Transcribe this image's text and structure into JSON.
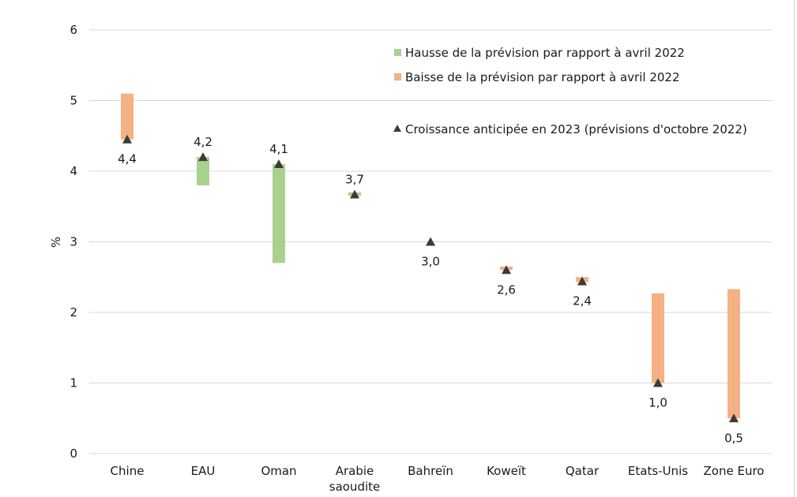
{
  "chart_data": {
    "type": "bar",
    "subtype": "floating-bar-with-markers",
    "ylabel": "%",
    "ylim": [
      0,
      6
    ],
    "yticks": [
      0,
      1,
      2,
      3,
      4,
      5,
      6
    ],
    "grid": true,
    "legend_position": "top-right",
    "categories": [
      [
        "Chine"
      ],
      [
        "EAU"
      ],
      [
        "Oman"
      ],
      [
        "Arabie",
        "saoudite"
      ],
      [
        "Bahreïn"
      ],
      [
        "Koweït"
      ],
      [
        "Qatar"
      ],
      [
        "Etats-Unis"
      ],
      [
        "Zone Euro"
      ]
    ],
    "series": [
      {
        "name": "Hausse de la prévision par rapport à avril 2022",
        "color": "#a9d18e",
        "ranges": [
          null,
          [
            3.8,
            4.2
          ],
          [
            2.7,
            4.1
          ],
          [
            3.65,
            3.7
          ],
          null,
          null,
          null,
          null,
          null
        ]
      },
      {
        "name": "Baisse de la prévision par rapport à avril 2022",
        "color": "#f4b183",
        "ranges": [
          [
            4.45,
            5.1
          ],
          null,
          null,
          null,
          null,
          [
            2.6,
            2.65
          ],
          [
            2.43,
            2.5
          ],
          [
            1.0,
            2.27
          ],
          [
            0.5,
            2.33
          ]
        ]
      },
      {
        "name": "Croissance anticipée en 2023 (prévisions d'octobre 2022)",
        "color": "#3a3a3a",
        "marker": "triangle",
        "values": [
          4.45,
          4.2,
          4.1,
          3.67,
          3.0,
          2.6,
          2.44,
          1.0,
          0.5
        ],
        "labels": [
          "4,4",
          "4,2",
          "4,1",
          "3,7",
          "3,0",
          "2,6",
          "2,4",
          "1,0",
          "0,5"
        ],
        "label_positions": [
          "below",
          "above",
          "above",
          "above",
          "below",
          "below",
          "below",
          "below",
          "below"
        ]
      }
    ]
  }
}
